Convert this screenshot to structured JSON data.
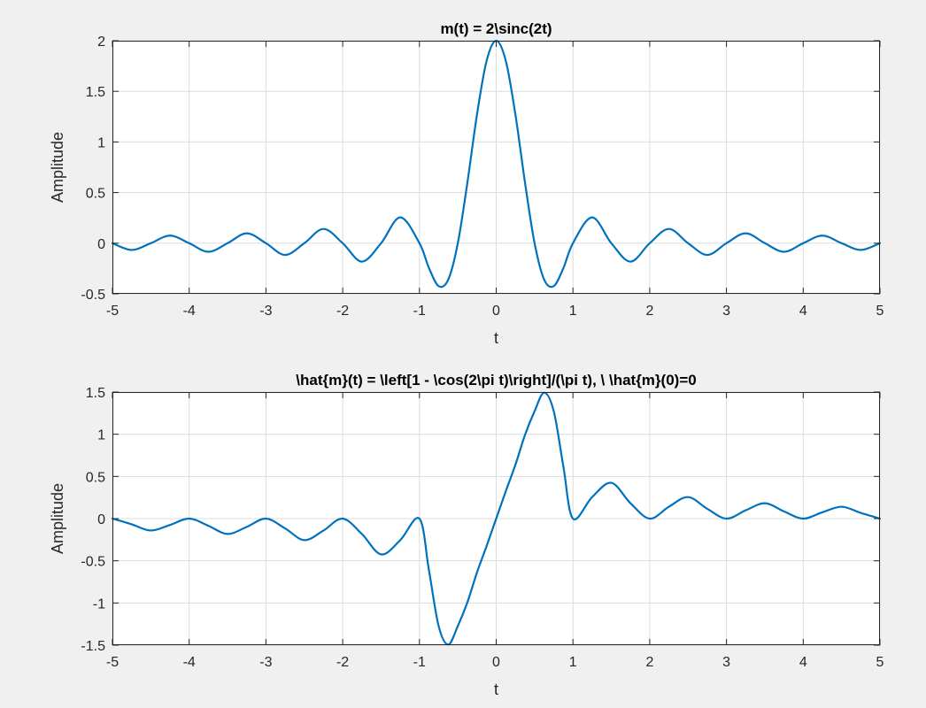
{
  "chart_data": [
    {
      "type": "line",
      "title": "m(t) = 2\\sinc(2t)",
      "xlabel": "t",
      "ylabel": "Amplitude",
      "xlim": [
        -5,
        5
      ],
      "ylim": [
        -0.5,
        2
      ],
      "xticks": [
        -5,
        -4,
        -3,
        -2,
        -1,
        0,
        1,
        2,
        3,
        4,
        5
      ],
      "yticks": [
        -0.5,
        0,
        0.5,
        1,
        1.5,
        2
      ],
      "xtick_labels": [
        "-5",
        "-4",
        "-3",
        "-2",
        "-1",
        "0",
        "1",
        "2",
        "3",
        "4",
        "5"
      ],
      "ytick_labels": [
        "-0.5",
        "0",
        "0.5",
        "1",
        "1.5",
        "2"
      ],
      "grid": true,
      "series": [
        {
          "color": "#0072bd",
          "x": [
            -5,
            -4.75,
            -4.5,
            -4.25,
            -4,
            -3.75,
            -3.5,
            -3.25,
            -3,
            -2.75,
            -2.5,
            -2.25,
            -2,
            -1.75,
            -1.5,
            -1.25,
            -1,
            -0.875,
            -0.75,
            -0.625,
            -0.5,
            -0.375,
            -0.25,
            -0.125,
            0,
            0.125,
            0.25,
            0.375,
            0.5,
            0.625,
            0.75,
            0.875,
            1,
            1.25,
            1.5,
            1.75,
            2,
            2.25,
            2.5,
            2.75,
            3,
            3.25,
            3.5,
            3.75,
            4,
            4.25,
            4.5,
            4.75,
            5
          ],
          "y": [
            0,
            -0.067,
            0,
            0.075,
            0,
            -0.085,
            0,
            0.098,
            0,
            -0.116,
            0,
            0.141,
            0,
            -0.182,
            0,
            0.255,
            0,
            -0.247,
            -0.424,
            -0.36,
            0,
            0.6,
            1.273,
            1.801,
            2,
            1.801,
            1.273,
            0.6,
            0,
            -0.36,
            -0.424,
            -0.247,
            0,
            0.255,
            0,
            -0.182,
            0,
            0.141,
            0,
            -0.116,
            0,
            0.098,
            0,
            -0.085,
            0,
            0.075,
            0,
            -0.067,
            0
          ]
        }
      ]
    },
    {
      "type": "line",
      "title": "\\hat{m}(t) = \\left[1 - \\cos(2\\pi t)\\right]/(\\pi t), \\ \\hat{m}(0)=0",
      "xlabel": "t",
      "ylabel": "Amplitude",
      "xlim": [
        -5,
        5
      ],
      "ylim": [
        -1.5,
        1.5
      ],
      "xticks": [
        -5,
        -4,
        -3,
        -2,
        -1,
        0,
        1,
        2,
        3,
        4,
        5
      ],
      "yticks": [
        -1.5,
        -1,
        -0.5,
        0,
        0.5,
        1,
        1.5
      ],
      "xtick_labels": [
        "-5",
        "-4",
        "-3",
        "-2",
        "-1",
        "0",
        "1",
        "2",
        "3",
        "4",
        "5"
      ],
      "ytick_labels": [
        "-1.5",
        "-1",
        "-0.5",
        "0",
        "0.5",
        "1",
        "1.5"
      ],
      "grid": true,
      "series": [
        {
          "color": "#0072bd",
          "x": [
            -5,
            -4.75,
            -4.5,
            -4.25,
            -4,
            -3.75,
            -3.5,
            -3.25,
            -3,
            -2.75,
            -2.5,
            -2.25,
            -2,
            -1.75,
            -1.5,
            -1.25,
            -1,
            -0.875,
            -0.75,
            -0.625,
            -0.5,
            -0.375,
            -0.25,
            -0.125,
            0,
            0.125,
            0.25,
            0.375,
            0.5,
            0.625,
            0.75,
            0.875,
            1,
            1.25,
            1.5,
            1.75,
            2,
            2.25,
            2.5,
            2.75,
            3,
            3.25,
            3.5,
            3.75,
            4,
            4.25,
            4.5,
            4.75,
            5
          ],
          "y": [
            0,
            -0.067,
            -0.141,
            -0.075,
            0,
            -0.085,
            -0.182,
            -0.098,
            0,
            -0.116,
            -0.255,
            -0.141,
            0,
            -0.182,
            -0.424,
            -0.255,
            0,
            -0.62,
            -1.273,
            -1.493,
            -1.273,
            -0.991,
            -0.637,
            -0.325,
            0,
            0.325,
            0.637,
            0.991,
            1.273,
            1.493,
            1.273,
            0.62,
            0,
            0.255,
            0.424,
            0.182,
            0,
            0.141,
            0.255,
            0.116,
            0,
            0.098,
            0.182,
            0.085,
            0,
            0.075,
            0.141,
            0.067,
            0
          ]
        }
      ]
    }
  ]
}
